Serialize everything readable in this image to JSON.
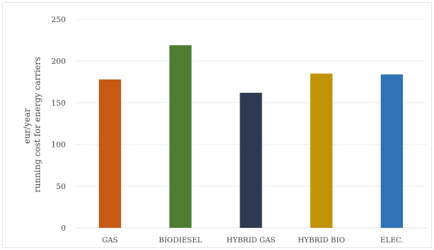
{
  "chart_data": {
    "type": "bar",
    "categories": [
      "GAS",
      "BIODIESEL",
      "HYBRID GAS",
      "HYBRID BIO",
      "ELEC."
    ],
    "values": [
      178,
      219,
      162,
      185,
      184
    ],
    "colors": [
      "#c65a14",
      "#4e7d32",
      "#2e3a52",
      "#c29206",
      "#2f73b7"
    ],
    "title": "",
    "xlabel": "",
    "ylabel_lines": [
      "eur/year",
      "running cost for energy carriers"
    ],
    "ylim": [
      0,
      250
    ],
    "yticks": [
      0,
      50,
      100,
      150,
      200,
      250
    ],
    "grid": true
  }
}
